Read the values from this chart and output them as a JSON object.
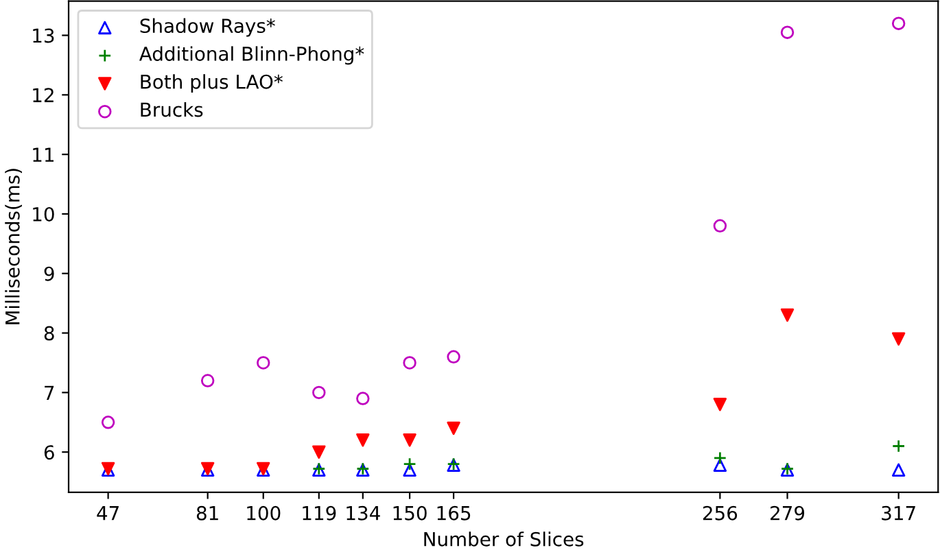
{
  "chart_data": {
    "type": "scatter",
    "xlabel": "Number of Slices",
    "ylabel": "Milliseconds(ms)",
    "x": [
      47,
      81,
      100,
      119,
      134,
      150,
      165,
      256,
      279,
      317
    ],
    "xlim": [
      33.5,
      330.5
    ],
    "xticks": [
      47,
      81,
      100,
      119,
      134,
      150,
      165,
      256,
      279,
      317
    ],
    "ylim": [
      5.325,
      13.575
    ],
    "yticks": [
      6,
      7,
      8,
      9,
      10,
      11,
      12,
      13
    ],
    "grid": false,
    "legend": "top left",
    "series": [
      {
        "name": "Shadow Rays*",
        "color": "#0000ff",
        "marker": "triangle",
        "values": [
          5.7,
          5.7,
          5.7,
          5.7,
          5.7,
          5.7,
          5.78,
          5.78,
          5.7,
          5.7
        ]
      },
      {
        "name": "Additional Blinn-Phong*",
        "color": "#008000",
        "marker": "cross",
        "values": [
          null,
          null,
          null,
          5.72,
          5.72,
          5.8,
          5.8,
          5.9,
          5.72,
          6.1
        ]
      },
      {
        "name": "Both plus LAO*",
        "color": "#ff0000",
        "marker": "triangle_down",
        "values": [
          5.72,
          5.72,
          5.72,
          6.0,
          6.2,
          6.2,
          6.4,
          6.8,
          8.3,
          7.9
        ]
      },
      {
        "name": "Brucks",
        "color": "#bf00bf",
        "marker": "circle",
        "values": [
          6.5,
          7.2,
          7.5,
          7.0,
          6.9,
          7.5,
          7.6,
          9.8,
          13.05,
          13.2
        ]
      }
    ]
  }
}
